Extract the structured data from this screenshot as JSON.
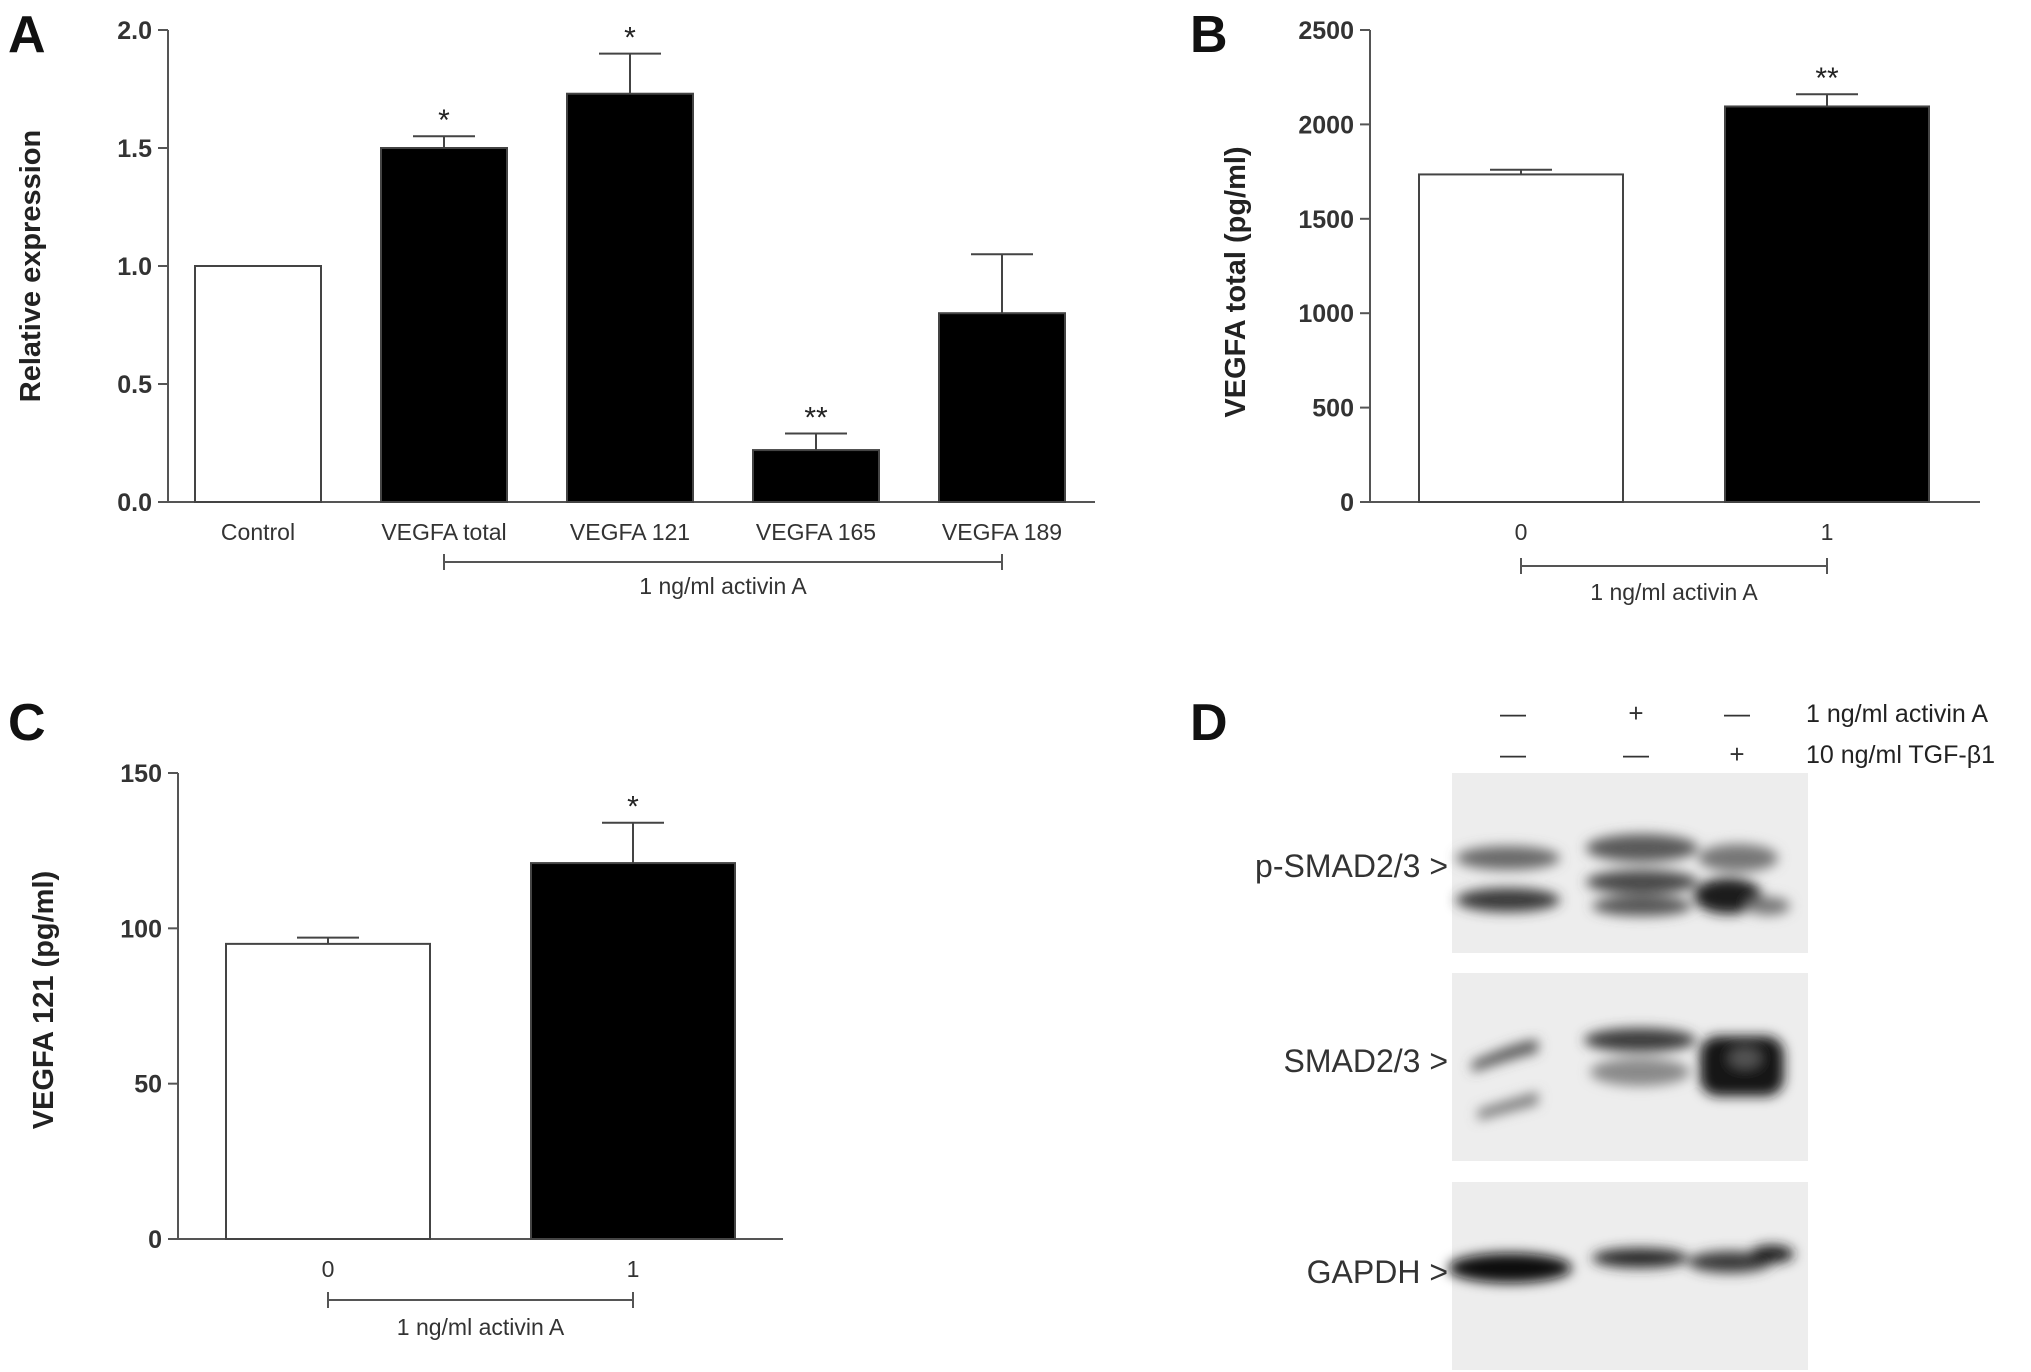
{
  "panels": {
    "A": "A",
    "B": "B",
    "C": "C",
    "D": "D"
  },
  "colors": {
    "white_bar": "#ffffff",
    "black_bar": "#000000",
    "axis": "#555555"
  },
  "chart_data": [
    {
      "id": "A",
      "type": "bar",
      "categories": [
        "Control",
        "VEGFA total",
        "VEGFA 121",
        "VEGFA 165",
        "VEGFA 189"
      ],
      "values": [
        1.0,
        1.5,
        1.73,
        0.22,
        0.8
      ],
      "errors": [
        0.0,
        0.05,
        0.17,
        0.07,
        0.25
      ],
      "fills": [
        "#ffffff",
        "#000000",
        "#000000",
        "#000000",
        "#000000"
      ],
      "significance": [
        "",
        "*",
        "*",
        "**",
        ""
      ],
      "ylabel": "Relative expression",
      "ylim": [
        0,
        2.0
      ],
      "yticks": [
        "0.0",
        "0.5",
        "1.0",
        "1.5",
        "2.0"
      ],
      "bracket": {
        "label": "1 ng/ml  activin A",
        "from": 1,
        "to": 4
      }
    },
    {
      "id": "B",
      "type": "bar",
      "categories": [
        "0",
        "1"
      ],
      "values": [
        1735,
        2095
      ],
      "errors": [
        25,
        65
      ],
      "fills": [
        "#ffffff",
        "#000000"
      ],
      "significance": [
        "",
        "**"
      ],
      "ylabel": "VEGFA total (pg/ml)",
      "ylim": [
        0,
        2500
      ],
      "yticks": [
        "0",
        "500",
        "1000",
        "1500",
        "2000",
        "2500"
      ],
      "bracket": {
        "label": "1 ng/ml  activin A",
        "from": 0,
        "to": 1
      }
    },
    {
      "id": "C",
      "type": "bar",
      "categories": [
        "0",
        "1"
      ],
      "values": [
        95,
        121
      ],
      "errors": [
        2,
        13
      ],
      "fills": [
        "#ffffff",
        "#000000"
      ],
      "significance": [
        "",
        "*"
      ],
      "ylabel": "VEGFA 121 (pg/ml)",
      "ylim": [
        0,
        150
      ],
      "yticks": [
        "0",
        "50",
        "100",
        "150"
      ],
      "bracket": {
        "label": "1 ng/ml  activin A",
        "from": 0,
        "to": 1
      }
    }
  ],
  "blot": {
    "conditions": [
      {
        "label": "1 ng/ml  activin A",
        "signs": [
          "—",
          "+",
          "—"
        ]
      },
      {
        "label": "10 ng/ml TGF-β1",
        "signs": [
          "—",
          "—",
          "+"
        ]
      }
    ],
    "bands": [
      "p-SMAD2/3 >",
      "SMAD2/3 >",
      "GAPDH >"
    ]
  }
}
